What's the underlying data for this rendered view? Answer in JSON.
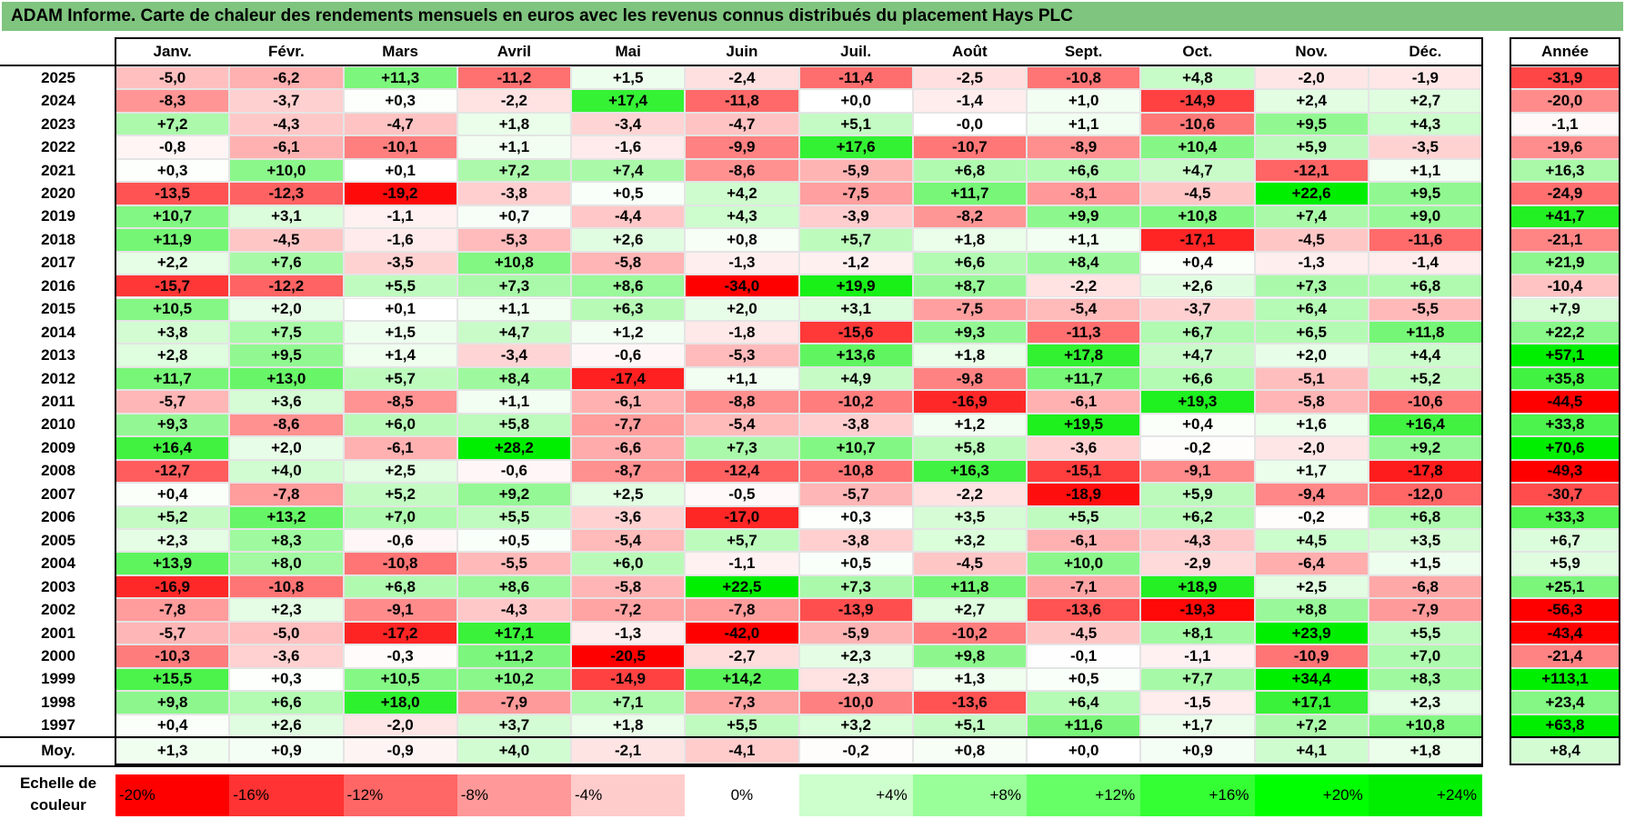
{
  "title": "ADAM Informe. Carte de chaleur des rendements mensuels en euros avec les revenus connus distribués du placement Hays PLC",
  "chart_data": {
    "type": "heatmap",
    "months": [
      "Janv.",
      "Févr.",
      "Mars",
      "Avril",
      "Mai",
      "Juin",
      "Juil.",
      "Août",
      "Sept.",
      "Oct.",
      "Nov.",
      "Déc."
    ],
    "year_header": "Année",
    "avg_label": "Moy.",
    "rows": [
      {
        "year": "2025",
        "values": [
          "-5,0",
          "-6,2",
          "+11,3",
          "-11,2",
          "+1,5",
          "-2,4",
          "-11,4",
          "-2,5",
          "-10,8",
          "+4,8",
          "-2,0",
          "-1,9"
        ],
        "annual": "-31,9"
      },
      {
        "year": "2024",
        "values": [
          "-8,3",
          "-3,7",
          "+0,3",
          "-2,2",
          "+17,4",
          "-11,8",
          "+0,0",
          "-1,4",
          "+1,0",
          "-14,9",
          "+2,4",
          "+2,7"
        ],
        "annual": "-20,0"
      },
      {
        "year": "2023",
        "values": [
          "+7,2",
          "-4,3",
          "-4,7",
          "+1,8",
          "-3,4",
          "-4,7",
          "+5,1",
          "-0,0",
          "+1,1",
          "-10,6",
          "+9,5",
          "+4,3"
        ],
        "annual": "-1,1"
      },
      {
        "year": "2022",
        "values": [
          "-0,8",
          "-6,1",
          "-10,1",
          "+1,1",
          "-1,6",
          "-9,9",
          "+17,6",
          "-10,7",
          "-8,9",
          "+10,4",
          "+5,9",
          "-3,5"
        ],
        "annual": "-19,6"
      },
      {
        "year": "2021",
        "values": [
          "+0,3",
          "+10,0",
          "+0,1",
          "+7,2",
          "+7,4",
          "-8,6",
          "-5,9",
          "+6,8",
          "+6,6",
          "+4,7",
          "-12,1",
          "+1,1"
        ],
        "annual": "+16,3"
      },
      {
        "year": "2020",
        "values": [
          "-13,5",
          "-12,3",
          "-19,2",
          "-3,8",
          "+0,5",
          "+4,2",
          "-7,5",
          "+11,7",
          "-8,1",
          "-4,5",
          "+22,6",
          "+9,5"
        ],
        "annual": "-24,9"
      },
      {
        "year": "2019",
        "values": [
          "+10,7",
          "+3,1",
          "-1,1",
          "+0,7",
          "-4,4",
          "+4,3",
          "-3,9",
          "-8,2",
          "+9,9",
          "+10,8",
          "+7,4",
          "+9,0"
        ],
        "annual": "+41,7"
      },
      {
        "year": "2018",
        "values": [
          "+11,9",
          "-4,5",
          "-1,6",
          "-5,3",
          "+2,6",
          "+0,8",
          "+5,7",
          "+1,8",
          "+1,1",
          "-17,1",
          "-4,5",
          "-11,6"
        ],
        "annual": "-21,1"
      },
      {
        "year": "2017",
        "values": [
          "+2,2",
          "+7,6",
          "-3,5",
          "+10,8",
          "-5,8",
          "-1,3",
          "-1,2",
          "+6,6",
          "+8,4",
          "+0,4",
          "-1,3",
          "-1,4"
        ],
        "annual": "+21,9"
      },
      {
        "year": "2016",
        "values": [
          "-15,7",
          "-12,2",
          "+5,5",
          "+7,3",
          "+8,6",
          "-34,0",
          "+19,9",
          "+8,7",
          "-2,2",
          "+2,6",
          "+7,3",
          "+6,8"
        ],
        "annual": "-10,4"
      },
      {
        "year": "2015",
        "values": [
          "+10,5",
          "+2,0",
          "+0,1",
          "+1,1",
          "+6,3",
          "+2,0",
          "+3,1",
          "-7,5",
          "-5,4",
          "-3,7",
          "+6,4",
          "-5,5"
        ],
        "annual": "+7,9"
      },
      {
        "year": "2014",
        "values": [
          "+3,8",
          "+7,5",
          "+1,5",
          "+4,7",
          "+1,2",
          "-1,8",
          "-15,6",
          "+9,3",
          "-11,3",
          "+6,7",
          "+6,5",
          "+11,8"
        ],
        "annual": "+22,2"
      },
      {
        "year": "2013",
        "values": [
          "+2,8",
          "+9,5",
          "+1,4",
          "-3,4",
          "-0,6",
          "-5,3",
          "+13,6",
          "+1,8",
          "+17,8",
          "+4,7",
          "+2,0",
          "+4,4"
        ],
        "annual": "+57,1"
      },
      {
        "year": "2012",
        "values": [
          "+11,7",
          "+13,0",
          "+5,7",
          "+8,4",
          "-17,4",
          "+1,1",
          "+4,9",
          "-9,8",
          "+11,7",
          "+6,6",
          "-5,1",
          "+5,2"
        ],
        "annual": "+35,8"
      },
      {
        "year": "2011",
        "values": [
          "-5,7",
          "+3,6",
          "-8,5",
          "+1,1",
          "-6,1",
          "-8,8",
          "-10,2",
          "-16,9",
          "-6,1",
          "+19,3",
          "-5,8",
          "-10,6"
        ],
        "annual": "-44,5"
      },
      {
        "year": "2010",
        "values": [
          "+9,3",
          "-8,6",
          "+6,0",
          "+5,8",
          "-7,7",
          "-5,4",
          "-3,8",
          "+1,2",
          "+19,5",
          "+0,4",
          "+1,6",
          "+16,4"
        ],
        "annual": "+33,8"
      },
      {
        "year": "2009",
        "values": [
          "+16,4",
          "+2,0",
          "-6,1",
          "+28,2",
          "-6,6",
          "+7,3",
          "+10,7",
          "+5,8",
          "-3,6",
          "-0,2",
          "-2,0",
          "+9,2"
        ],
        "annual": "+70,6"
      },
      {
        "year": "2008",
        "values": [
          "-12,7",
          "+4,0",
          "+2,5",
          "-0,6",
          "-8,7",
          "-12,4",
          "-10,8",
          "+16,3",
          "-15,1",
          "-9,1",
          "+1,7",
          "-17,8"
        ],
        "annual": "-49,3"
      },
      {
        "year": "2007",
        "values": [
          "+0,4",
          "-7,8",
          "+5,2",
          "+9,2",
          "+2,5",
          "-0,5",
          "-5,7",
          "-2,2",
          "-18,9",
          "+5,9",
          "-9,4",
          "-12,0"
        ],
        "annual": "-30,7"
      },
      {
        "year": "2006",
        "values": [
          "+5,2",
          "+13,2",
          "+7,0",
          "+5,5",
          "-3,6",
          "-17,0",
          "+0,3",
          "+3,5",
          "+5,5",
          "+6,2",
          "-0,2",
          "+6,8"
        ],
        "annual": "+33,3"
      },
      {
        "year": "2005",
        "values": [
          "+2,3",
          "+8,3",
          "-0,6",
          "+0,5",
          "-5,4",
          "+5,7",
          "-3,8",
          "+3,2",
          "-6,1",
          "-4,3",
          "+4,5",
          "+3,5"
        ],
        "annual": "+6,7"
      },
      {
        "year": "2004",
        "values": [
          "+13,9",
          "+8,0",
          "-10,8",
          "-5,5",
          "+6,0",
          "-1,1",
          "+0,5",
          "-4,5",
          "+10,0",
          "-2,9",
          "-6,4",
          "+1,5"
        ],
        "annual": "+5,9"
      },
      {
        "year": "2003",
        "values": [
          "-16,9",
          "-10,8",
          "+6,8",
          "+8,6",
          "-5,8",
          "+22,5",
          "+7,3",
          "+11,8",
          "-7,1",
          "+18,9",
          "+2,5",
          "-6,8"
        ],
        "annual": "+25,1"
      },
      {
        "year": "2002",
        "values": [
          "-7,8",
          "+2,3",
          "-9,1",
          "-4,3",
          "-7,2",
          "-7,8",
          "-13,9",
          "+2,7",
          "-13,6",
          "-19,3",
          "+8,8",
          "-7,9"
        ],
        "annual": "-56,3"
      },
      {
        "year": "2001",
        "values": [
          "-5,7",
          "-5,0",
          "-17,2",
          "+17,1",
          "-1,3",
          "-42,0",
          "-5,9",
          "-10,2",
          "-4,5",
          "+8,1",
          "+23,9",
          "+5,5"
        ],
        "annual": "-43,4"
      },
      {
        "year": "2000",
        "values": [
          "-10,3",
          "-3,6",
          "-0,3",
          "+11,2",
          "-20,5",
          "-2,7",
          "+2,3",
          "+9,8",
          "-0,1",
          "-1,1",
          "-10,9",
          "+7,0"
        ],
        "annual": "-21,4"
      },
      {
        "year": "1999",
        "values": [
          "+15,5",
          "+0,3",
          "+10,5",
          "+10,2",
          "-14,9",
          "+14,2",
          "-2,3",
          "+1,3",
          "+0,5",
          "+7,7",
          "+34,4",
          "+8,3"
        ],
        "annual": "+113,1"
      },
      {
        "year": "1998",
        "values": [
          "+9,8",
          "+6,6",
          "+18,0",
          "-7,9",
          "+7,1",
          "-7,3",
          "-10,0",
          "-13,6",
          "+6,4",
          "-1,5",
          "+17,1",
          "+2,3"
        ],
        "annual": "+23,4"
      },
      {
        "year": "1997",
        "values": [
          "+0,4",
          "+2,6",
          "-2,0",
          "+3,7",
          "+1,8",
          "+5,5",
          "+3,2",
          "+5,1",
          "+11,6",
          "+1,7",
          "+7,2",
          "+10,8"
        ],
        "annual": "+63,8"
      }
    ],
    "averages": [
      "+1,3",
      "+0,9",
      "-0,9",
      "+4,0",
      "-2,1",
      "-4,1",
      "-0,2",
      "+0,8",
      "+0,0",
      "+0,9",
      "+4,1",
      "+1,8"
    ],
    "average_annual": "+8,4",
    "legend_label": "Echelle de couleur",
    "legend": [
      {
        "label": "-20%",
        "color": "#ff0000"
      },
      {
        "label": "-16%",
        "color": "#ff3333"
      },
      {
        "label": "-12%",
        "color": "#ff6666"
      },
      {
        "label": "-8%",
        "color": "#ff9999"
      },
      {
        "label": "-4%",
        "color": "#ffcccc"
      },
      {
        "label": "0%",
        "color": "#ffffff"
      },
      {
        "label": "+4%",
        "color": "#ccffcc"
      },
      {
        "label": "+8%",
        "color": "#99ff99"
      },
      {
        "label": "+12%",
        "color": "#66ff66"
      },
      {
        "label": "+16%",
        "color": "#33ff33"
      },
      {
        "label": "+20%",
        "color": "#00ff00"
      },
      {
        "label": "+24%",
        "color": "#00ee00"
      }
    ],
    "colors": {
      "title_bg": "#7fc47f",
      "negative_max": "#ff0000",
      "positive_max": "#00ee00",
      "neutral": "#ffffff"
    }
  }
}
